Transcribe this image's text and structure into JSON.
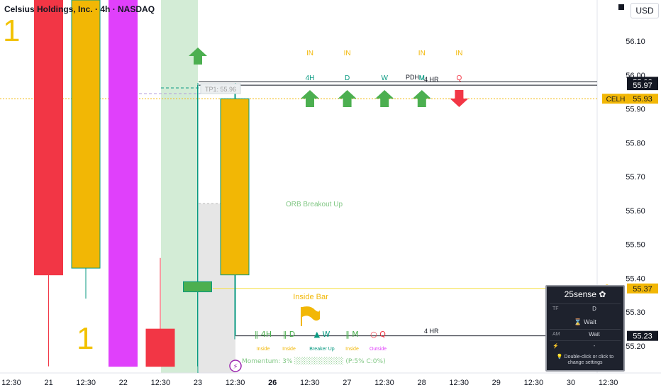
{
  "header": {
    "title": "Celsius Holdings, Inc. · 4h · NASDAQ",
    "currency_label": "USD",
    "big_digit": "1"
  },
  "chart_data": {
    "type": "candlestick",
    "timeframe": "4h",
    "y_ticks": [
      "56.10",
      "56.00",
      "55.90",
      "55.80",
      "55.70",
      "55.60",
      "55.50",
      "55.40",
      "55.30",
      "55.20"
    ],
    "ylim": [
      55.14,
      56.22
    ],
    "x_ticks": [
      {
        "label": "12:30",
        "bold": false
      },
      {
        "label": "21",
        "bold": false
      },
      {
        "label": "12:30",
        "bold": false
      },
      {
        "label": "22",
        "bold": false
      },
      {
        "label": "12:30",
        "bold": false
      },
      {
        "label": "23",
        "bold": false
      },
      {
        "label": "12:30",
        "bold": false
      },
      {
        "label": "26",
        "bold": true
      },
      {
        "label": "12:30",
        "bold": false
      },
      {
        "label": "27",
        "bold": false
      },
      {
        "label": "12:30",
        "bold": false
      },
      {
        "label": "28",
        "bold": false
      },
      {
        "label": "12:30",
        "bold": false
      },
      {
        "label": "29",
        "bold": false
      },
      {
        "label": "12:30",
        "bold": false
      },
      {
        "label": "30",
        "bold": false
      },
      {
        "label": "12:30",
        "bold": false
      }
    ],
    "candles": [
      {
        "slot": 1,
        "open": 56.25,
        "high": 56.25,
        "low": 55.14,
        "close": 55.41,
        "color": "#f23645",
        "border": "#f23645"
      },
      {
        "slot": 2,
        "open": 55.43,
        "high": 56.25,
        "low": 55.34,
        "close": 56.25,
        "color": "#f2b705",
        "border": "#089981"
      },
      {
        "slot": 3,
        "open": 56.25,
        "high": 56.25,
        "low": 55.14,
        "close": 55.14,
        "color": "#e040fb",
        "border": "#e040fb"
      },
      {
        "slot": 4,
        "open": 55.25,
        "high": 55.46,
        "low": 55.14,
        "close": 55.14,
        "color": "#f23645",
        "border": "#f23645"
      },
      {
        "slot": 5,
        "open": 55.39,
        "high": 55.97,
        "low": 55.14,
        "close": 55.36,
        "color": "#4caf50",
        "border": "#089981"
      },
      {
        "slot": 6,
        "open": 55.41,
        "high": 55.95,
        "low": 55.22,
        "close": 55.93,
        "color": "#f2b705",
        "border": "#089981"
      }
    ],
    "levels": [
      {
        "value": 55.98,
        "label": "55.98",
        "style": "solid"
      },
      {
        "value": 55.97,
        "label": "55.97",
        "style": "solid"
      },
      {
        "value": 55.23,
        "label": "55.23",
        "style": "solid"
      },
      {
        "value": 55.37,
        "label": "55.37",
        "style": "yellow"
      }
    ],
    "last_price": {
      "symbol": "CELH",
      "value": 55.93,
      "label": "55.93"
    },
    "tp_label": "TP1: 55.96",
    "orb_label": "ORB Breakout Up",
    "inside_bar_label": "Inside Bar",
    "pdh_label": "PDH",
    "hr_label_top": "4 HR",
    "hr_label_bottom": "4 HR",
    "marker_top_m": "M",
    "signal_columns": [
      {
        "top": "IN",
        "tf": "4H",
        "dir": "up",
        "color": "#4caf50"
      },
      {
        "top": "IN",
        "tf": "D",
        "dir": "up",
        "color": "#4caf50"
      },
      {
        "top": "",
        "tf": "W",
        "dir": "up",
        "color": "#4caf50"
      },
      {
        "top": "IN",
        "tf": "M",
        "dir": "up",
        "color": "#4caf50"
      },
      {
        "top": "IN",
        "tf": "Q",
        "dir": "down",
        "color": "#f23645"
      }
    ],
    "bottom_labels": [
      {
        "sym": "‖",
        "tf": "4H",
        "desc": "Inside",
        "color": "#4caf50",
        "desc_color": "#f2b705"
      },
      {
        "sym": "‖",
        "tf": "D",
        "desc": "Inside",
        "color": "#4caf50",
        "desc_color": "#f2b705"
      },
      {
        "sym": "▲",
        "tf": "W",
        "desc": "Breaker Up",
        "color": "#089981",
        "desc_color": "#089981"
      },
      {
        "sym": "‖",
        "tf": "M",
        "desc": "Inside",
        "color": "#4caf50",
        "desc_color": "#f2b705"
      },
      {
        "sym": "○",
        "tf": "Q",
        "desc": "Outside",
        "color": "#f23645",
        "desc_color": "#e040fb"
      }
    ],
    "momentum_text": "Momentum: 3% ░░░░░░░░░░ (P:5% C:0%)"
  },
  "panel": {
    "title": "25sense",
    "tf_key": "TF",
    "tf_value": "D",
    "status": "Wait",
    "am_key": "AM",
    "am_value": "Wait",
    "bolt_value": "-",
    "footer": "Double-click or click to change settings"
  },
  "colors": {
    "green": "#4caf50",
    "red": "#f23645",
    "yellow": "#f2b705",
    "teal": "#089981",
    "magenta": "#e040fb"
  }
}
